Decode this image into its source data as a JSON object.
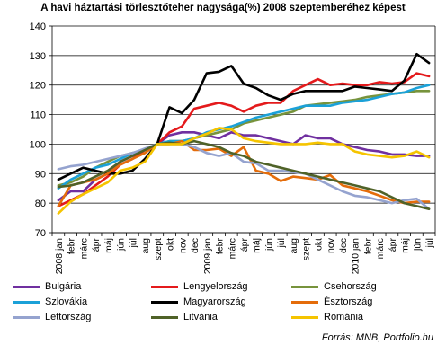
{
  "chart_data": {
    "type": "line",
    "title": "A havi háztartási törlesztőteher nagysága(%) 2008 szeptemberéhez képest",
    "xlabel": "",
    "ylabel": "",
    "ylim": [
      70,
      140
    ],
    "yticks": [
      70,
      80,
      90,
      100,
      110,
      120,
      130,
      140
    ],
    "grid": true,
    "legend_position": "bottom",
    "categories": [
      "2008 jan",
      "febr",
      "márc",
      "ápr",
      "máj",
      "jún",
      "júl",
      "aug",
      "szept",
      "okt",
      "nov",
      "dec",
      "2009 jan",
      "febr",
      "márc",
      "ápr",
      "máj",
      "jún",
      "júl",
      "aug",
      "szept",
      "okt",
      "nov",
      "dec",
      "2010 jan",
      "febr",
      "márc",
      "ápr",
      "máj",
      "jún",
      "júl"
    ],
    "series": [
      {
        "name": "Bulgária",
        "color": "#7030A0",
        "values": [
          81,
          84,
          84,
          88,
          90,
          94,
          96,
          98,
          100,
          103,
          104,
          104,
          103,
          102,
          104,
          103,
          103,
          102,
          101,
          100,
          103,
          102,
          102,
          100,
          99,
          98,
          97.5,
          96.5,
          96.5,
          96,
          96
        ]
      },
      {
        "name": "Lengyelország",
        "color": "#E41A1C",
        "values": [
          79,
          81,
          83,
          86,
          89,
          93,
          95,
          98,
          100,
          104,
          106,
          112,
          113,
          114,
          113,
          111,
          113,
          114,
          114,
          118,
          120,
          122,
          120,
          120.5,
          120,
          120,
          121,
          120.5,
          121,
          124,
          123
        ]
      },
      {
        "name": "Csehország",
        "color": "#77933C",
        "values": [
          86,
          87,
          89,
          92,
          94,
          96,
          97,
          98,
          100,
          101,
          101,
          102,
          103,
          104,
          105,
          107,
          108,
          109,
          110,
          111,
          113,
          113.5,
          114,
          114.5,
          115,
          116,
          116.5,
          117,
          117.5,
          118,
          118
        ]
      },
      {
        "name": "Szlovákia",
        "color": "#1BA1D8",
        "values": [
          85,
          88,
          90,
          92,
          93,
          95,
          97,
          98,
          100,
          101,
          101,
          102,
          104,
          105,
          106,
          107.5,
          109,
          110,
          111,
          112,
          113,
          113,
          113,
          114,
          114.5,
          115,
          116,
          117,
          117.5,
          119,
          120
        ]
      },
      {
        "name": "Magyarország",
        "color": "#000000",
        "values": [
          88,
          90,
          92,
          91,
          90,
          90,
          91,
          95,
          100,
          112.5,
          110.5,
          115,
          124,
          124.5,
          126.5,
          120.5,
          119,
          116.5,
          115,
          117,
          118,
          118,
          118,
          118,
          119.5,
          119,
          118.5,
          118,
          121.5,
          130.5,
          127.5
        ]
      },
      {
        "name": "Észtország",
        "color": "#E46C0A",
        "values": [
          79,
          86,
          87,
          88,
          90,
          93,
          95,
          97,
          100,
          100,
          101,
          98,
          98,
          98.5,
          96,
          99,
          91,
          90,
          87.5,
          89,
          88.5,
          88,
          89.5,
          86,
          85,
          84,
          82.5,
          81,
          80,
          80.5,
          80.5
        ]
      },
      {
        "name": "Lettország",
        "color": "#95A3CF",
        "values": [
          91.5,
          92.5,
          93,
          94,
          95,
          96,
          97,
          98.5,
          100,
          100,
          100,
          99,
          97,
          96,
          97,
          94,
          93.5,
          91,
          91,
          90.5,
          90,
          88,
          86,
          84,
          82.5,
          82,
          81,
          80,
          81,
          81.5,
          78
        ]
      },
      {
        "name": "Litvánia",
        "color": "#4F6228",
        "values": [
          85.5,
          86,
          87,
          89,
          91,
          94,
          96,
          98,
          100,
          100.5,
          100,
          101,
          100,
          99,
          97,
          96,
          94,
          93,
          92,
          91,
          90,
          89,
          88,
          87,
          86,
          85,
          84,
          82,
          80,
          79,
          78
        ]
      },
      {
        "name": "Románia",
        "color": "#F5C400",
        "values": [
          76.5,
          80.5,
          83,
          85,
          87,
          91,
          92,
          94,
          100,
          100,
          100,
          102,
          103.5,
          105.5,
          105,
          102,
          101,
          100.5,
          100,
          100,
          100,
          100.5,
          100,
          100,
          97.5,
          96.5,
          96,
          95.5,
          96,
          97.5,
          95.5
        ]
      }
    ]
  },
  "source_note": "Forrás: MNB, Portfolio.hu"
}
